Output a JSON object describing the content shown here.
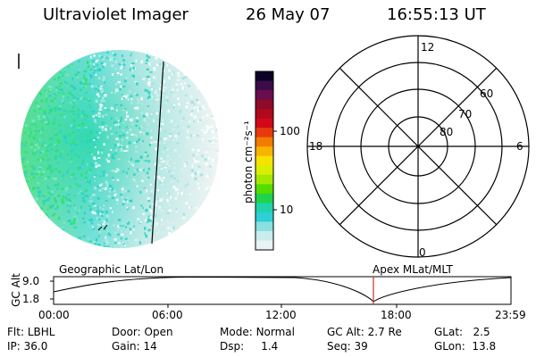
{
  "header": {
    "title": "Ultraviolet Imager",
    "date": "26 May 07",
    "time": "16:55:13 UT"
  },
  "colorbar": {
    "label": "photon cm⁻²s⁻¹",
    "ticks": [
      "100",
      "10"
    ]
  },
  "polar": {
    "mlt_labels": {
      "top": "12",
      "left": "18",
      "right": "6",
      "bottom": "0"
    },
    "lat_labels": [
      "60",
      "70",
      "80"
    ]
  },
  "timeline": {
    "axis_label": "GC Alt",
    "y_ticks": [
      "9.0",
      "1.8"
    ],
    "left_label": "Geographic Lat/Lon",
    "right_label": "Apex MLat/MLT",
    "x_ticks": [
      "00:00",
      "06:00",
      "12:00",
      "18:00",
      "23:59"
    ],
    "marker_color": "#c0392b"
  },
  "info": {
    "row1": [
      {
        "label": "Flt:",
        "value": "LBHL"
      },
      {
        "label": "Door:",
        "value": "Open"
      },
      {
        "label": "Mode:",
        "value": "Normal"
      },
      {
        "label": "GC Alt:",
        "value": "2.7 Re"
      },
      {
        "label": "GLat:",
        "value": "2.5"
      }
    ],
    "row2": [
      {
        "label": "IP:",
        "value": "36.0"
      },
      {
        "label": "Gain:",
        "value": "14"
      },
      {
        "label": "Dsp:",
        "value": "1.4"
      },
      {
        "label": "Seq:",
        "value": "39"
      },
      {
        "label": "GLon:",
        "value": "13.8"
      }
    ]
  }
}
